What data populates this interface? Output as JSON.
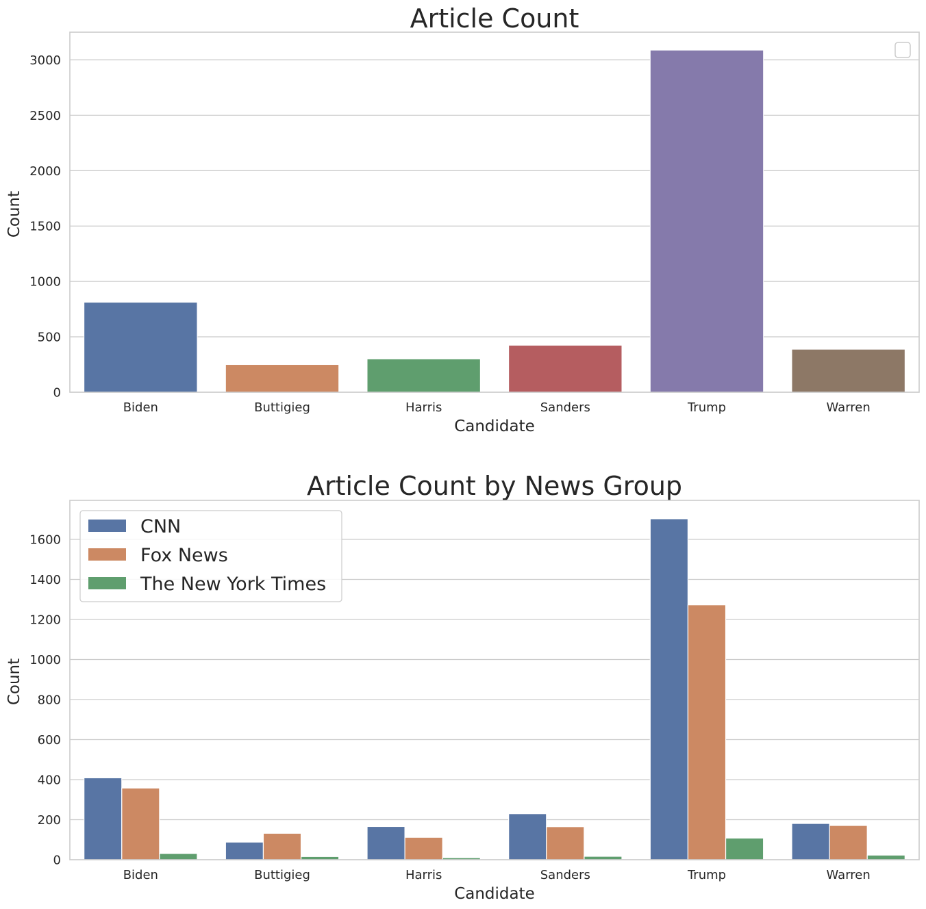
{
  "chart_data": [
    {
      "type": "bar",
      "title": "Article Count",
      "xlabel": "Candidate",
      "ylabel": "Count",
      "categories": [
        "Biden",
        "Buttigieg",
        "Harris",
        "Sanders",
        "Trump",
        "Warren"
      ],
      "values": [
        812,
        250,
        300,
        424,
        3088,
        388
      ],
      "colors": [
        "#5875a4",
        "#cc8963",
        "#5f9e6e",
        "#b55d60",
        "#857aab",
        "#8d7866"
      ],
      "ylim": [
        0,
        3250
      ],
      "yticks": [
        0,
        500,
        1000,
        1500,
        2000,
        2500,
        3000
      ],
      "grid": true,
      "legend": {
        "position": "upper right",
        "entries": []
      }
    },
    {
      "type": "bar",
      "title": "Article Count by News Group",
      "xlabel": "Candidate",
      "ylabel": "Count",
      "categories": [
        "Biden",
        "Buttigieg",
        "Harris",
        "Sanders",
        "Trump",
        "Warren"
      ],
      "series": [
        {
          "name": "CNN",
          "color": "#5875a4",
          "values": [
            409,
            88,
            166,
            230,
            1703,
            181
          ]
        },
        {
          "name": "Fox News",
          "color": "#cc8963",
          "values": [
            358,
            132,
            112,
            165,
            1273,
            171
          ]
        },
        {
          "name": "The New York Times",
          "color": "#5f9e6e",
          "values": [
            31,
            16,
            10,
            17,
            108,
            23
          ]
        }
      ],
      "ylim": [
        0,
        1795
      ],
      "yticks": [
        0,
        200,
        400,
        600,
        800,
        1000,
        1200,
        1400,
        1600
      ],
      "grid": true,
      "legend": {
        "position": "upper left",
        "entries": [
          "CNN",
          "Fox News",
          "The New York Times"
        ]
      }
    }
  ]
}
